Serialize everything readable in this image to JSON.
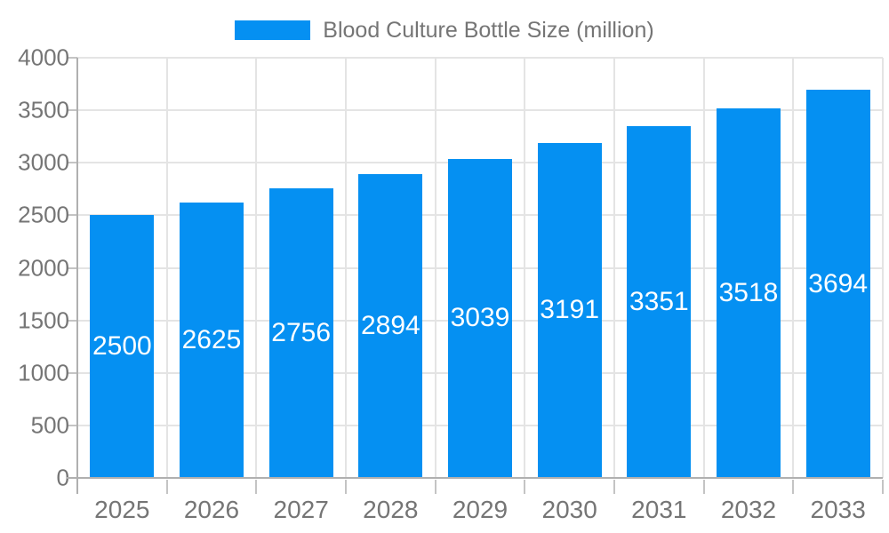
{
  "chart_data": {
    "type": "bar",
    "title": "Blood Culture Bottle Size (million)",
    "categories": [
      "2025",
      "2026",
      "2027",
      "2028",
      "2029",
      "2030",
      "2031",
      "2032",
      "2033"
    ],
    "values": [
      2500,
      2625,
      2756,
      2894,
      3039,
      3191,
      3351,
      3518,
      3694
    ],
    "xlabel": "",
    "ylabel": "",
    "ylim": [
      0,
      4000
    ],
    "yticks": [
      0,
      500,
      1000,
      1500,
      2000,
      2500,
      3000,
      3500,
      4000
    ],
    "grid": true,
    "legend_position": "top",
    "bar_labels_inside": true,
    "colors": {
      "bar": "#0590f2",
      "grid": "#e4e4e4",
      "axis": "#b0b0b0",
      "tick": "#c4c4c4",
      "axis_text": "#757575",
      "legend_text": "#757575",
      "bar_label": "#ffffff",
      "background": "#ffffff"
    }
  }
}
